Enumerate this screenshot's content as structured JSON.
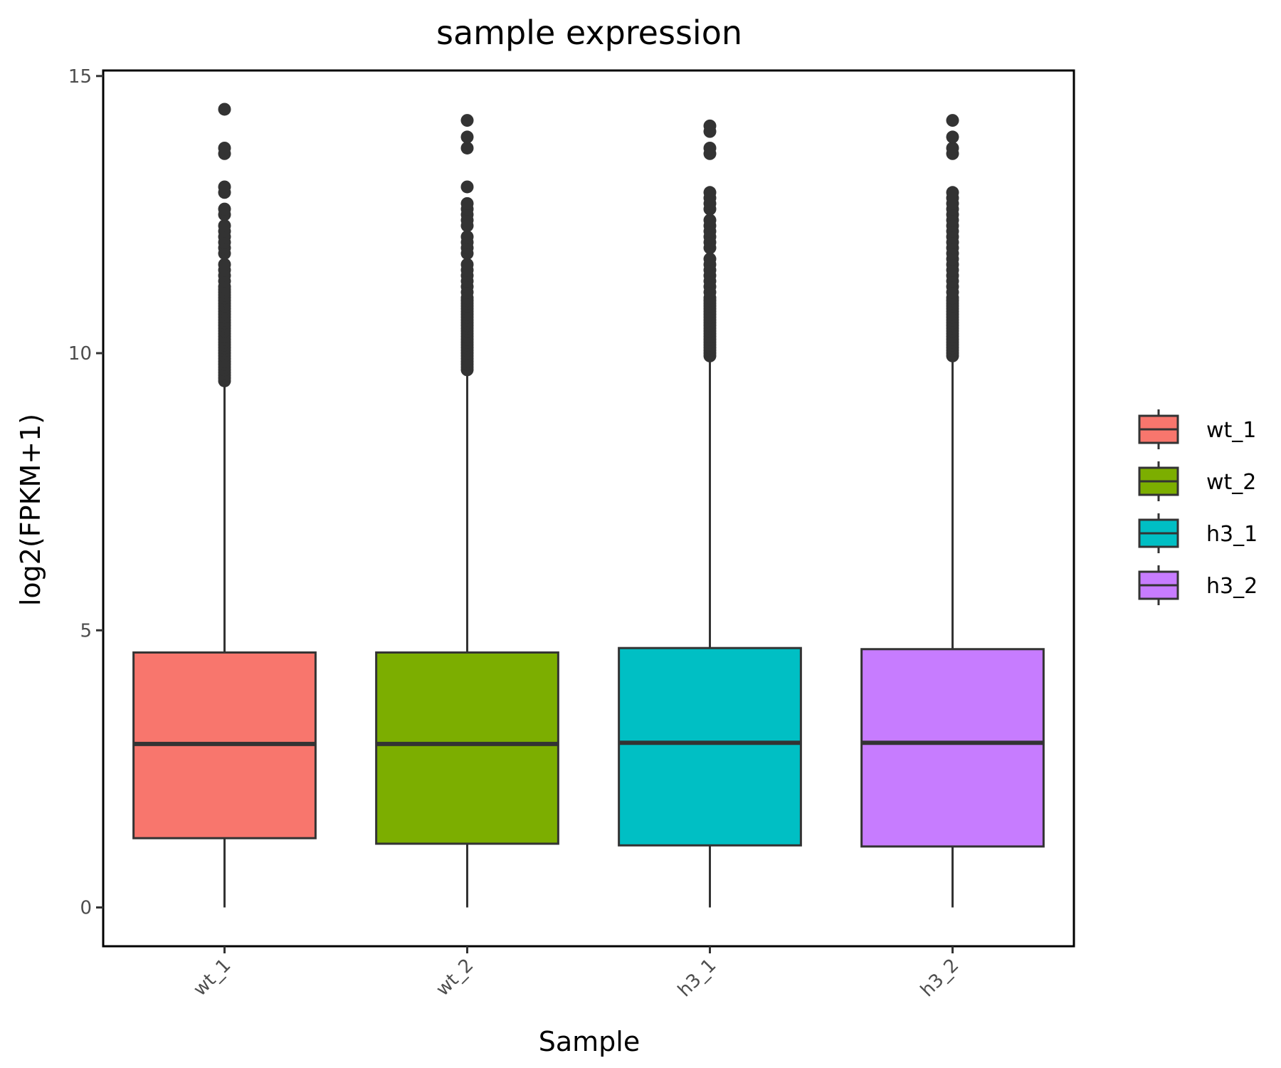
{
  "chart_data": {
    "type": "boxplot",
    "title": "sample expression",
    "xlabel": "Sample",
    "ylabel": "log2(FPKM+1)",
    "ylim": [
      -0.7,
      15.1
    ],
    "yticks": [
      0,
      5,
      10,
      15
    ],
    "ytick_labels": [
      "0",
      "5",
      "10",
      "15"
    ],
    "categories": [
      "wt_1",
      "wt_2",
      "h3_1",
      "h3_2"
    ],
    "legend": {
      "position": "right",
      "entries": [
        "wt_1",
        "wt_2",
        "h3_1",
        "h3_2"
      ]
    },
    "series": [
      {
        "name": "wt_1",
        "color": "#F8766D",
        "min": 0,
        "q1": 1.25,
        "median": 2.95,
        "q3": 4.6,
        "max": 9.5,
        "outliers": [
          9.5,
          9.55,
          9.6,
          9.65,
          9.7,
          9.75,
          9.8,
          9.85,
          9.9,
          9.95,
          10.0,
          10.05,
          10.1,
          10.15,
          10.2,
          10.25,
          10.3,
          10.35,
          10.4,
          10.45,
          10.5,
          10.55,
          10.6,
          10.65,
          10.7,
          10.75,
          10.8,
          10.85,
          10.9,
          10.95,
          11.0,
          11.05,
          11.1,
          11.15,
          11.2,
          11.3,
          11.4,
          11.5,
          11.6,
          11.8,
          11.9,
          12.0,
          12.1,
          12.2,
          12.3,
          12.5,
          12.6,
          12.9,
          13.0,
          13.6,
          13.7,
          14.4
        ]
      },
      {
        "name": "wt_2",
        "color": "#7CAE00",
        "min": 0,
        "q1": 1.15,
        "median": 2.95,
        "q3": 4.6,
        "max": 9.7,
        "outliers": [
          9.7,
          9.75,
          9.8,
          9.85,
          9.9,
          9.95,
          10.0,
          10.05,
          10.1,
          10.15,
          10.2,
          10.25,
          10.3,
          10.35,
          10.4,
          10.45,
          10.5,
          10.55,
          10.6,
          10.65,
          10.7,
          10.75,
          10.8,
          10.85,
          10.9,
          10.95,
          11.0,
          11.1,
          11.2,
          11.3,
          11.4,
          11.5,
          11.6,
          11.8,
          11.9,
          12.0,
          12.1,
          12.3,
          12.4,
          12.5,
          12.6,
          12.7,
          13.0,
          13.7,
          13.9,
          14.2
        ]
      },
      {
        "name": "h3_1",
        "color": "#00BFC4",
        "min": 0,
        "q1": 1.12,
        "median": 2.97,
        "q3": 4.68,
        "max": 9.95,
        "outliers": [
          9.95,
          10.0,
          10.05,
          10.1,
          10.15,
          10.2,
          10.25,
          10.3,
          10.35,
          10.4,
          10.45,
          10.5,
          10.55,
          10.6,
          10.65,
          10.7,
          10.75,
          10.8,
          10.85,
          10.9,
          10.95,
          11.0,
          11.1,
          11.2,
          11.3,
          11.4,
          11.5,
          11.6,
          11.7,
          11.9,
          12.0,
          12.1,
          12.2,
          12.3,
          12.4,
          12.6,
          12.7,
          12.8,
          12.9,
          13.6,
          13.7,
          14.0,
          14.1
        ]
      },
      {
        "name": "h3_2",
        "color": "#C77CFF",
        "min": 0,
        "q1": 1.1,
        "median": 2.97,
        "q3": 4.66,
        "max": 9.95,
        "outliers": [
          9.95,
          10.0,
          10.05,
          10.1,
          10.15,
          10.2,
          10.25,
          10.3,
          10.35,
          10.4,
          10.45,
          10.5,
          10.55,
          10.6,
          10.65,
          10.7,
          10.75,
          10.8,
          10.85,
          10.9,
          10.95,
          11.0,
          11.1,
          11.2,
          11.3,
          11.4,
          11.5,
          11.6,
          11.7,
          11.8,
          11.9,
          12.0,
          12.1,
          12.2,
          12.3,
          12.4,
          12.5,
          12.6,
          12.7,
          12.8,
          12.9,
          13.6,
          13.7,
          13.9,
          14.2
        ]
      }
    ]
  }
}
